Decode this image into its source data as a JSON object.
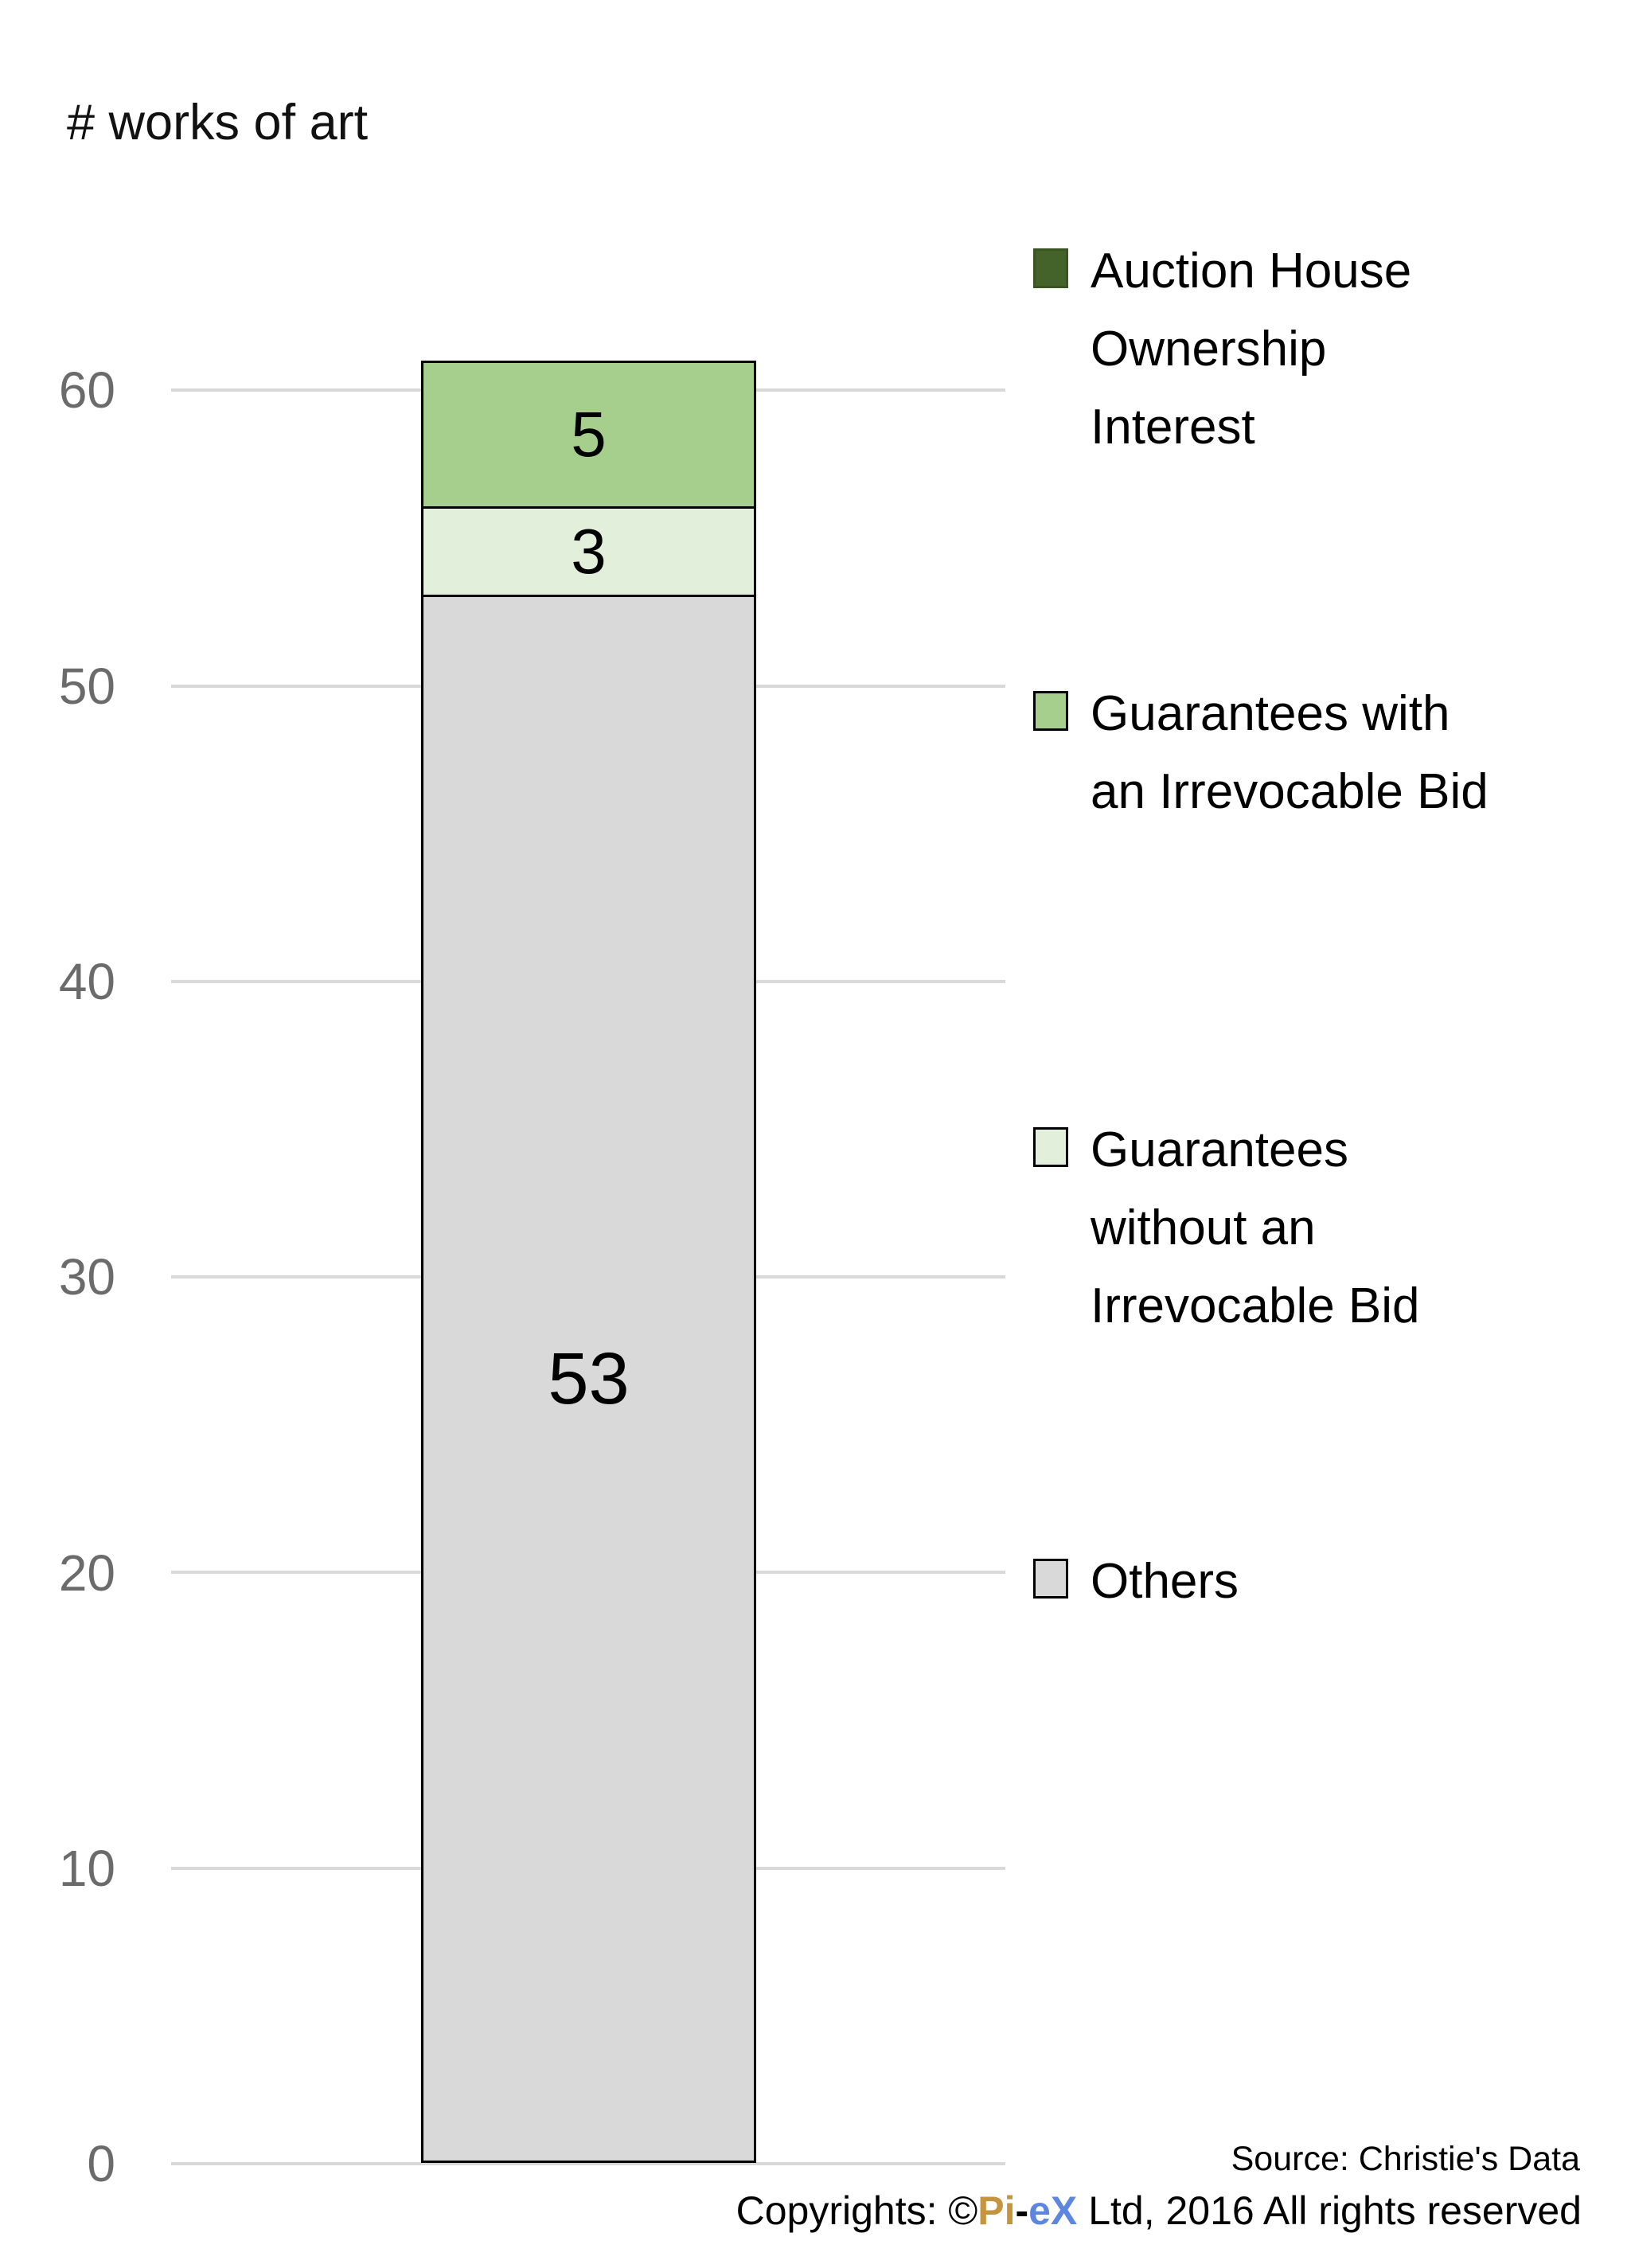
{
  "title": "# works of art",
  "chart_data": {
    "type": "bar",
    "stacked": true,
    "orientation": "vertical",
    "categories": [
      ""
    ],
    "series": [
      {
        "name": "Others",
        "values": [
          53
        ],
        "color": "#d9d9d9"
      },
      {
        "name": "Guarantees without an Irrevocable Bid",
        "values": [
          3
        ],
        "color": "#e2efda"
      },
      {
        "name": "Guarantees with an Irrevocable Bid",
        "values": [
          5
        ],
        "color": "#a6ce8c"
      },
      {
        "name": "Auction House Ownership Interest",
        "values": [
          0
        ],
        "color": "#44632a"
      }
    ],
    "title": "# works of art",
    "xlabel": "",
    "ylabel": "# works of art",
    "ylim": [
      0,
      60
    ],
    "yticks": [
      0,
      10,
      20,
      30,
      40,
      50,
      60
    ],
    "grid": true,
    "gridline_color": "#d9d9d9",
    "bar_border_color": "#000000",
    "legend_position": "right",
    "data_labels": [
      53,
      3,
      5
    ],
    "total": 61
  },
  "axis": {
    "tick_labels": [
      "60",
      "50",
      "40",
      "30",
      "20",
      "10",
      "0"
    ],
    "tick_color": "#6b6b6b"
  },
  "bar_labels": {
    "guarantees_with_ib": "5",
    "guarantees_without_ib": "3",
    "others": "53"
  },
  "legend": {
    "items": [
      {
        "label": "Auction House\nOwnership\nInterest",
        "color": "#44632a"
      },
      {
        "label": "Guarantees with\nan Irrevocable Bid",
        "color": "#a6ce8c"
      },
      {
        "label": "Guarantees\nwithout an\nIrrevocable Bid",
        "color": "#e2efda"
      },
      {
        "label": "Others",
        "color": "#d9d9d9"
      }
    ]
  },
  "footer": {
    "source": "Source: Christie's Data",
    "copyright_prefix": "Copyrights: ©",
    "brand_pi": "Pi",
    "brand_dash": "-",
    "brand_ex": "eX",
    "copyright_suffix": " Ltd, 2016 All rights reserved",
    "brand_pi_color": "#c5943e",
    "brand_ex_color": "#5d86e3"
  }
}
